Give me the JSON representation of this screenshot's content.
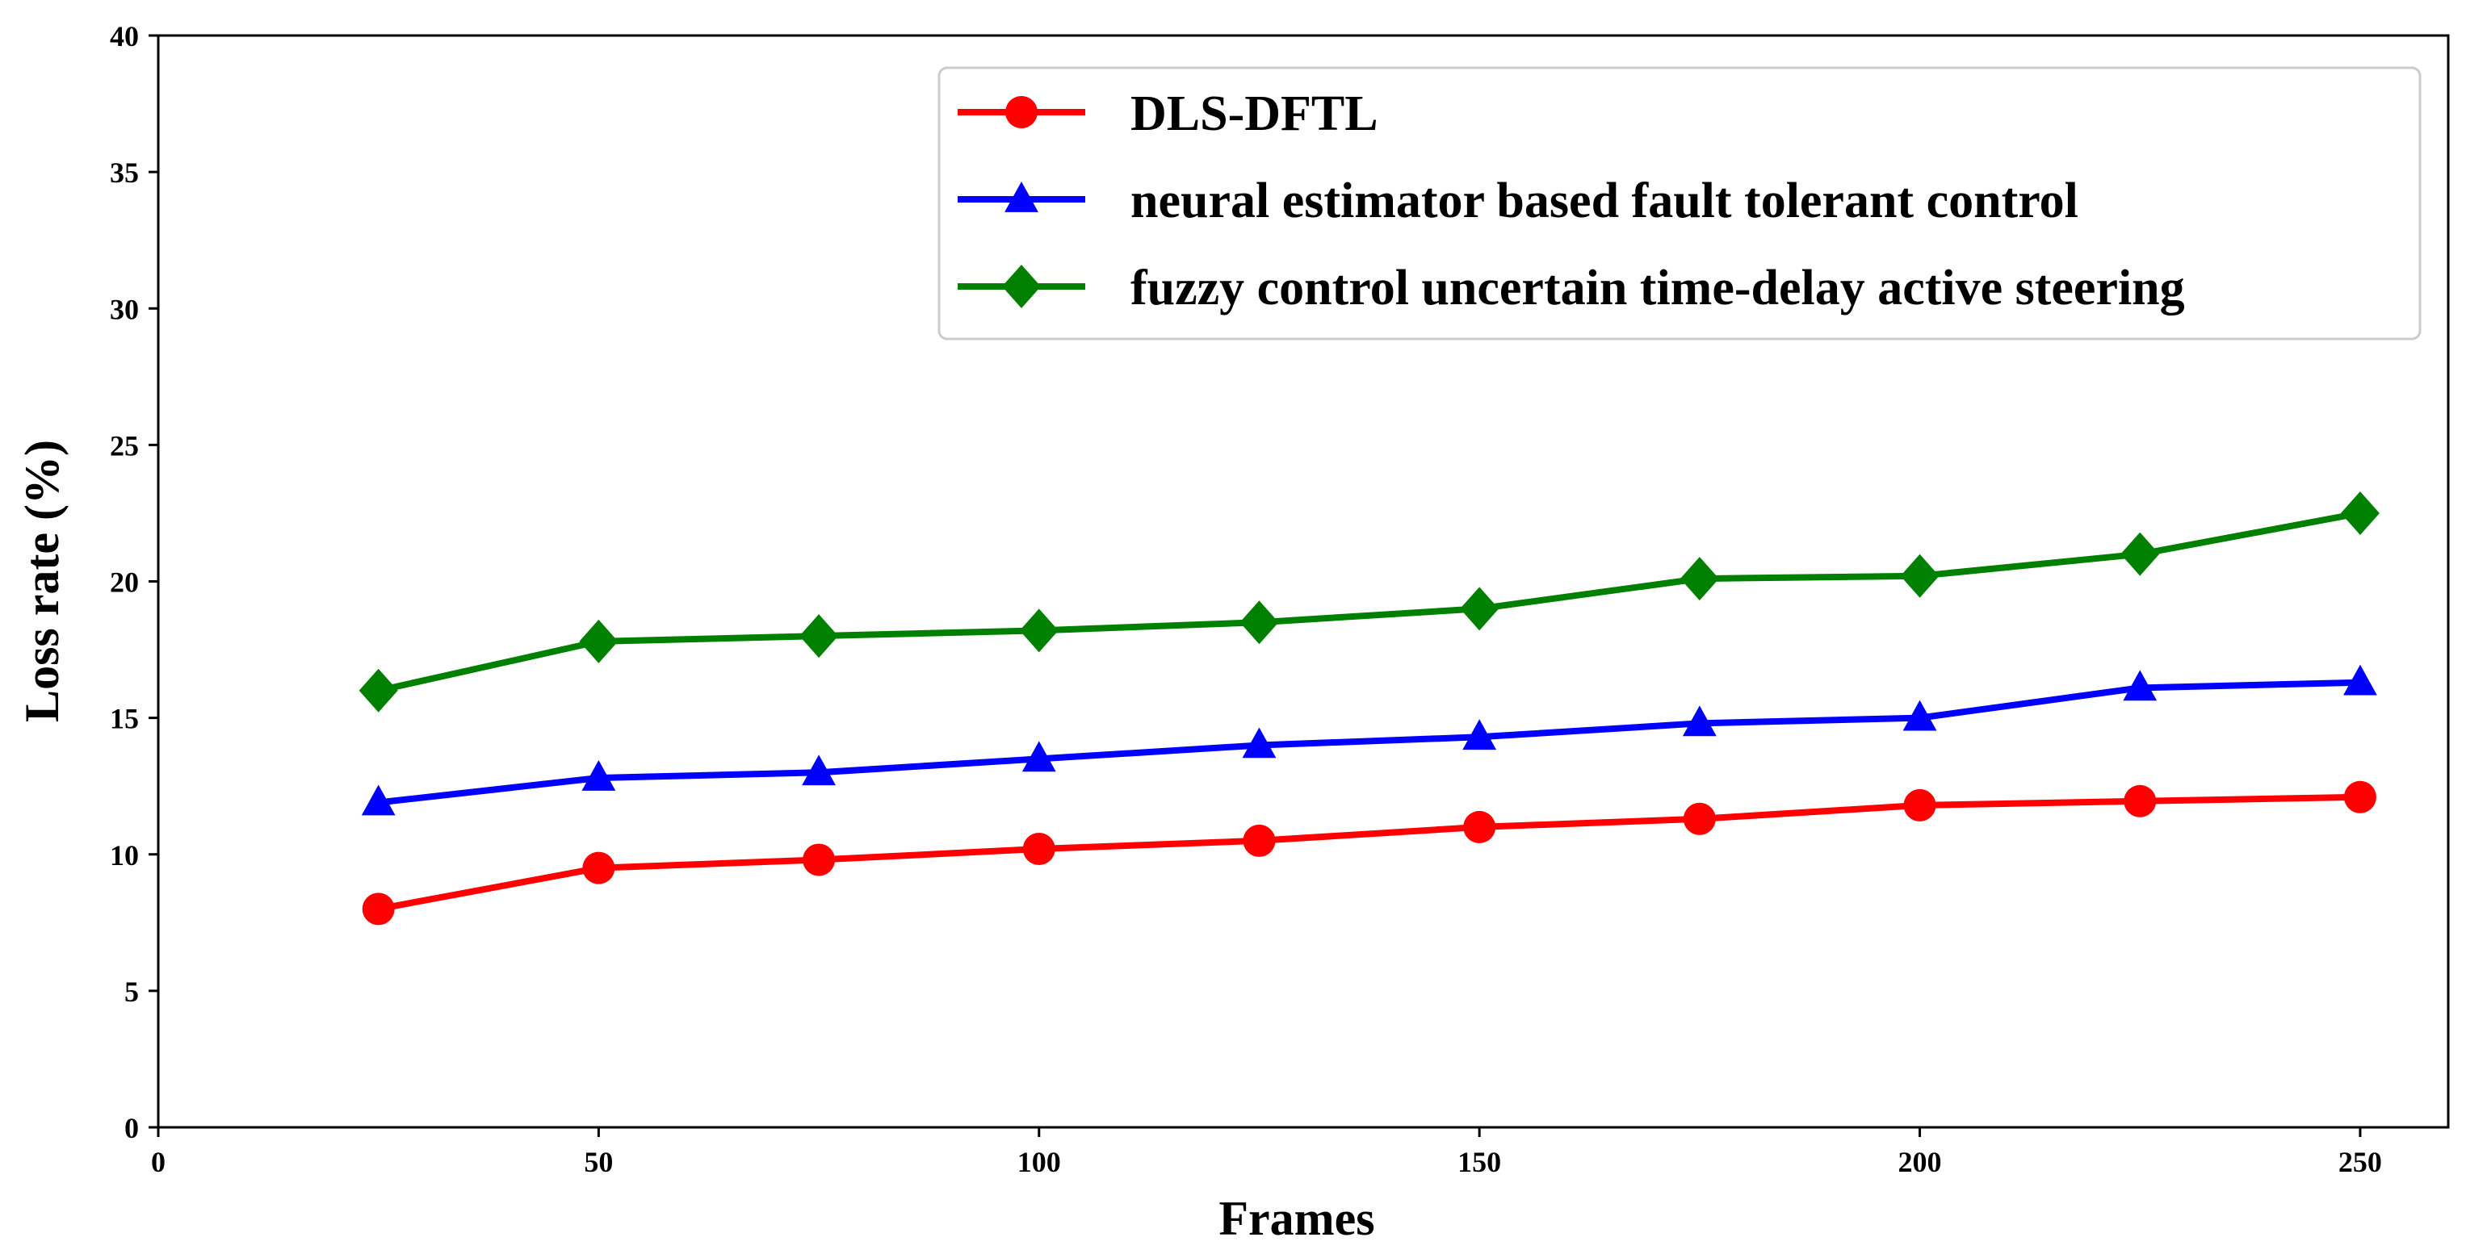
{
  "chart_data": {
    "type": "line",
    "title": "",
    "xlabel": "Frames",
    "ylabel": "Loss rate (%)",
    "xlim": [
      0,
      260
    ],
    "ylim": [
      0,
      40
    ],
    "xticks": [
      0,
      50,
      100,
      150,
      200,
      250
    ],
    "yticks": [
      0,
      5,
      10,
      15,
      20,
      25,
      30,
      35,
      40
    ],
    "grid": false,
    "legend_position": "top-right",
    "x": [
      25,
      50,
      75,
      100,
      125,
      150,
      175,
      200,
      225,
      250
    ],
    "series": [
      {
        "name": "DLS-DFTL",
        "color": "#ff0000",
        "marker": "circle",
        "values": [
          8.0,
          9.5,
          9.8,
          10.2,
          10.5,
          11.0,
          11.3,
          11.8,
          11.95,
          12.1
        ]
      },
      {
        "name": "neural estimator based fault tolerant control",
        "color": "#0000ff",
        "marker": "triangle",
        "values": [
          11.9,
          12.8,
          13.0,
          13.5,
          14.0,
          14.3,
          14.8,
          15.0,
          16.1,
          16.3
        ]
      },
      {
        "name": "fuzzy control uncertain time-delay active steering",
        "color": "#008000",
        "marker": "diamond",
        "values": [
          16.0,
          17.8,
          18.0,
          18.2,
          18.5,
          19.0,
          20.1,
          20.2,
          21.0,
          22.5
        ]
      }
    ]
  }
}
